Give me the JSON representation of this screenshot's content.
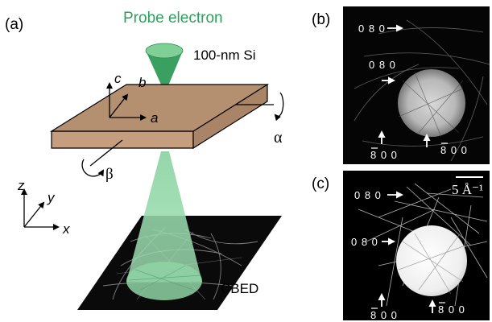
{
  "panel_a": {
    "label": "(a)",
    "probe_label": "Probe electron",
    "sample_label": "100-nm Si",
    "cbed_label": "CBED",
    "crystal_axes": [
      "a",
      "b",
      "c"
    ],
    "lab_axes": [
      "x",
      "y",
      "z"
    ],
    "tilt_angles": [
      "α",
      "β"
    ]
  },
  "panel_b": {
    "label": "(b)",
    "reflections": [
      "0 8 0",
      "0 8 0",
      "8 0 0",
      "8 0 0"
    ]
  },
  "panel_c": {
    "label": "(c)",
    "scale_bar": "5 Å⁻¹",
    "reflections": [
      "0 8 0",
      "0 8 0",
      "8 0 0",
      "8 0 0"
    ]
  },
  "colors": {
    "probe_green": "#2f9e5c",
    "beam_green": "#8fd4a4",
    "slab_top": "#b48f70",
    "slab_side": "#c49e7f"
  }
}
